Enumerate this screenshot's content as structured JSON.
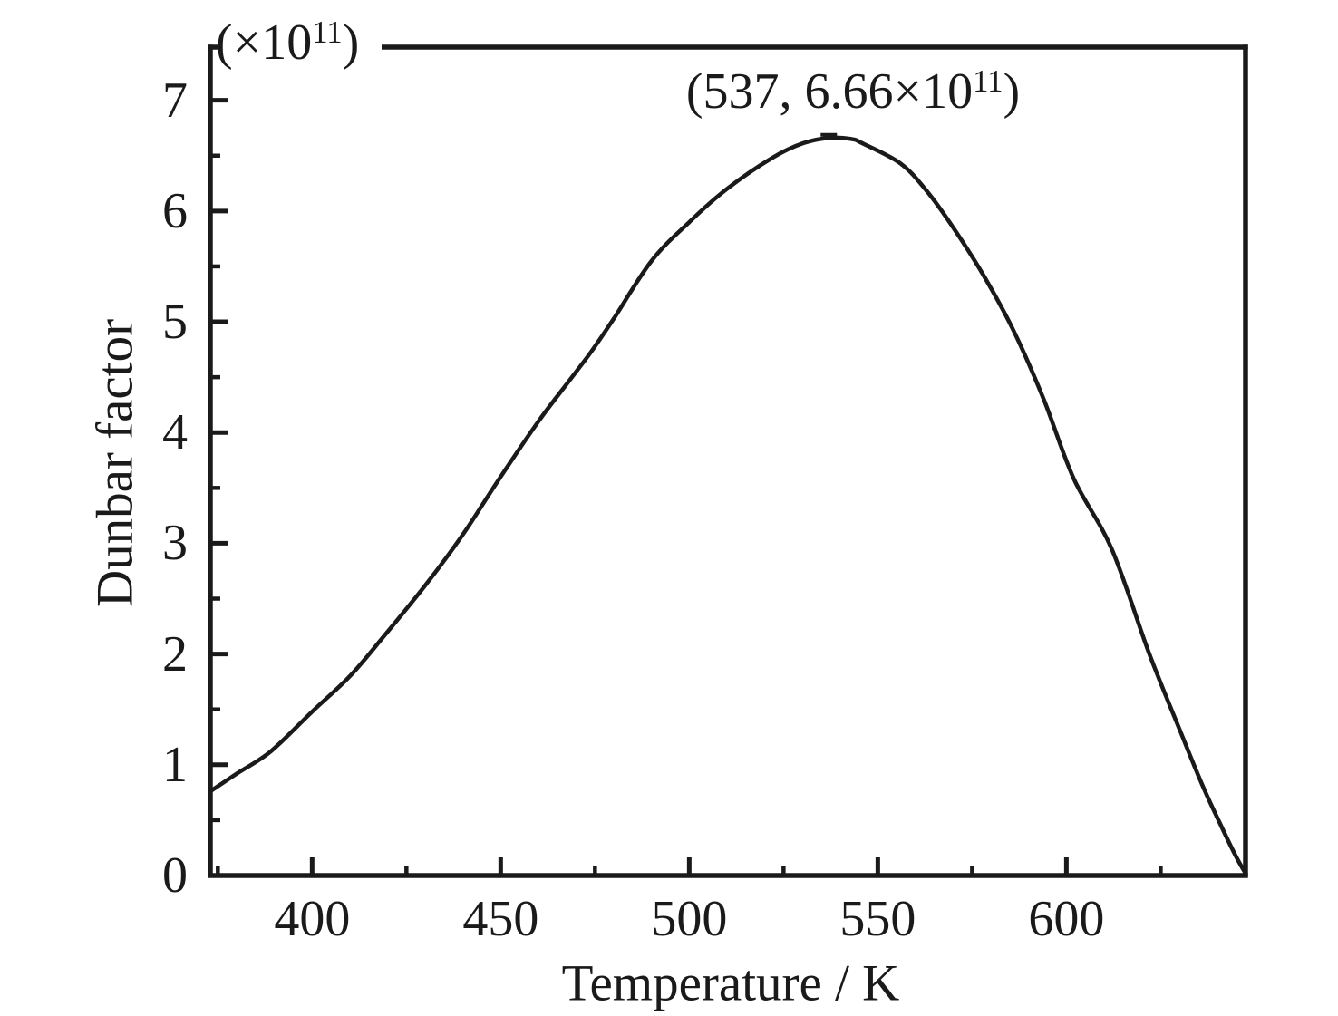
{
  "figure": {
    "background_color": "#ffffff",
    "ink_color": "#1a1a1a"
  },
  "labels": {
    "y_unit": {
      "prefix": "(×10",
      "exponent": "11",
      "suffix": ")"
    },
    "peak_annotation": {
      "prefix": "(537, 6.66×10",
      "exponent": "11",
      "suffix": ")"
    }
  },
  "chart_data": {
    "type": "line",
    "title": "",
    "xlabel": "Temperature / K",
    "ylabel": "Dunbar factor",
    "y_unit_multiplier": "×10^11",
    "xlim": [
      373,
      647.5
    ],
    "ylim": [
      0,
      7.48
    ],
    "x_major_ticks": [
      400,
      450,
      500,
      550,
      600
    ],
    "x_minor_ticks": [
      375,
      425,
      475,
      525,
      575,
      625
    ],
    "y_major_ticks": [
      0,
      1,
      2,
      3,
      4,
      5,
      6,
      7
    ],
    "y_minor_ticks": [
      0.5,
      1.5,
      2.5,
      3.5,
      4.5,
      5.5,
      6.5
    ],
    "grid": false,
    "legend": null,
    "peak": {
      "x": 537,
      "y": 6.66
    },
    "series": [
      {
        "name": "Dunbar factor",
        "points": [
          [
            373,
            0.76
          ],
          [
            380,
            0.92
          ],
          [
            389,
            1.12
          ],
          [
            400,
            1.48
          ],
          [
            410,
            1.8
          ],
          [
            419,
            2.16
          ],
          [
            430,
            2.62
          ],
          [
            440,
            3.08
          ],
          [
            449,
            3.55
          ],
          [
            460,
            4.1
          ],
          [
            468,
            4.46
          ],
          [
            474,
            4.73
          ],
          [
            480,
            5.03
          ],
          [
            490,
            5.55
          ],
          [
            500,
            5.9
          ],
          [
            510,
            6.2
          ],
          [
            522,
            6.48
          ],
          [
            530,
            6.61
          ],
          [
            537,
            6.66
          ],
          [
            543,
            6.65
          ],
          [
            546,
            6.61
          ],
          [
            556,
            6.43
          ],
          [
            563,
            6.18
          ],
          [
            570,
            5.85
          ],
          [
            578,
            5.42
          ],
          [
            586,
            4.92
          ],
          [
            594,
            4.3
          ],
          [
            602,
            3.58
          ],
          [
            612,
            2.95
          ],
          [
            622,
            2.0
          ],
          [
            630,
            1.32
          ],
          [
            636,
            0.82
          ],
          [
            641,
            0.45
          ],
          [
            645,
            0.17
          ],
          [
            647.5,
            0.02
          ]
        ]
      }
    ]
  }
}
